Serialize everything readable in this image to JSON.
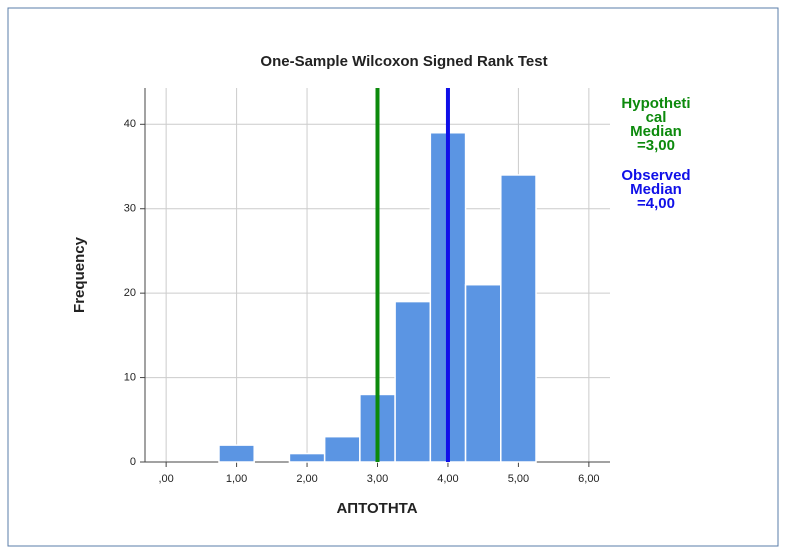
{
  "chart_data": {
    "type": "histogram",
    "title": "One-Sample Wilcoxon Signed Rank Test",
    "x_label": "ΑΠΤΟΤΗΤΑ",
    "y_label": "Frequency",
    "bins": [
      0.75,
      1.25,
      1.75,
      2.25,
      2.75,
      3.25,
      3.75,
      4.25,
      4.75,
      5.25
    ],
    "values": [
      2,
      0,
      1,
      3,
      8,
      19,
      39,
      21,
      34
    ],
    "color": "#5b95e3",
    "xlim": [
      -0.3,
      6.3
    ],
    "ylim": [
      0,
      44.3
    ],
    "xticks": [
      {
        "value": 0,
        "label": ",00"
      },
      {
        "value": 1,
        "label": "1,00"
      },
      {
        "value": 2,
        "label": "2,00"
      },
      {
        "value": 3,
        "label": "3,00"
      },
      {
        "value": 4,
        "label": "4,00"
      },
      {
        "value": 5,
        "label": "5,00"
      },
      {
        "value": 6,
        "label": "6,00"
      }
    ],
    "yticks": [
      0,
      10,
      20,
      30,
      40
    ],
    "grid": true,
    "reference_lines": [
      {
        "value": 3,
        "color": "#0c8a0c",
        "label_lines": [
          "Hypotheti",
          "cal",
          "Median",
          "=3,00"
        ]
      },
      {
        "value": 4,
        "color": "#1010e8",
        "label_lines": [
          "Observed",
          "Median",
          "=4,00"
        ]
      }
    ]
  }
}
